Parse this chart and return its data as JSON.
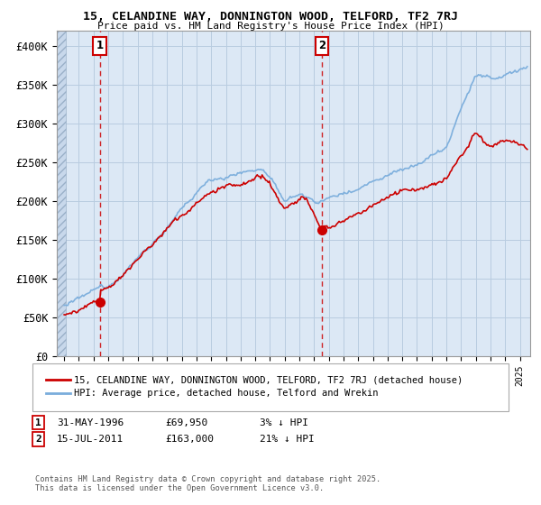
{
  "title1": "15, CELANDINE WAY, DONNINGTON WOOD, TELFORD, TF2 7RJ",
  "title2": "Price paid vs. HM Land Registry's House Price Index (HPI)",
  "legend_label1": "15, CELANDINE WAY, DONNINGTON WOOD, TELFORD, TF2 7RJ (detached house)",
  "legend_label2": "HPI: Average price, detached house, Telford and Wrekin",
  "marker1_date": "31-MAY-1996",
  "marker1_price": "£69,950",
  "marker1_info": "3% ↓ HPI",
  "marker2_date": "15-JUL-2011",
  "marker2_price": "£163,000",
  "marker2_info": "21% ↓ HPI",
  "footer": "Contains HM Land Registry data © Crown copyright and database right 2025.\nThis data is licensed under the Open Government Licence v3.0.",
  "ylim": [
    0,
    420000
  ],
  "yticks": [
    0,
    50000,
    100000,
    150000,
    200000,
    250000,
    300000,
    350000,
    400000
  ],
  "ytick_labels": [
    "£0",
    "£50K",
    "£100K",
    "£150K",
    "£200K",
    "£250K",
    "£300K",
    "£350K",
    "£400K"
  ],
  "hpi_color": "#7aaddc",
  "price_color": "#cc0000",
  "marker_box_color": "#cc0000",
  "chart_bg": "#dce8f5",
  "hatch_color": "#b8cce0",
  "grid_color": "#b8cce0",
  "marker1_x_year": 1996.42,
  "marker2_x_year": 2011.54,
  "xlim_left": 1993.5,
  "xlim_right": 2025.7,
  "hatch_end": 1994.1
}
